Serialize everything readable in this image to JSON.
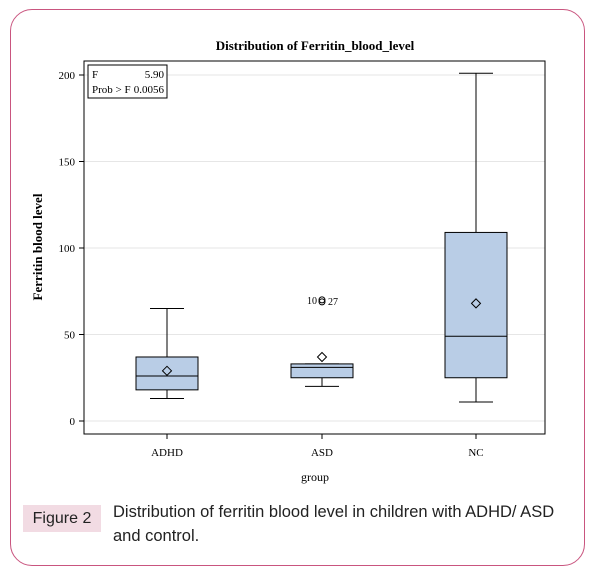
{
  "figure": {
    "label": "Figure 2",
    "caption": "Distribution of ferritin blood level in children with ADHD/ ASD and control."
  },
  "colors": {
    "frame_border": "#c9557f",
    "label_bg": "#f2dbe3",
    "box_fill": "#b9cde6",
    "stroke": "#000000",
    "grid": "#e6e6e6"
  },
  "chart_data": {
    "type": "box",
    "title": "Distribution of Ferritin_blood_level",
    "xlabel": "group",
    "ylabel": "Ferritin blood level",
    "ylim": [
      0,
      210
    ],
    "yticks": [
      0,
      50,
      100,
      150,
      200
    ],
    "grid": "horizontal",
    "categories": [
      "ADHD",
      "ASD",
      "NC"
    ],
    "boxes": [
      {
        "group": "ADHD",
        "min": 13,
        "q1": 18,
        "median": 26,
        "q3": 37,
        "max": 65,
        "mean": 29,
        "outliers": []
      },
      {
        "group": "ASD",
        "min": 20,
        "q1": 25,
        "median": 31,
        "q3": 33,
        "max": 33,
        "mean": 37,
        "outliers": [
          {
            "value": 70,
            "labels": [
              "10",
              "27"
            ]
          }
        ]
      },
      {
        "group": "NC",
        "min": 11,
        "q1": 25,
        "median": 49,
        "q3": 109,
        "max": 201,
        "mean": 68,
        "outliers": []
      }
    ],
    "stats": {
      "placement": "top-left",
      "rows": [
        {
          "label": "F",
          "value": "5.90"
        },
        {
          "label": "Prob > F",
          "value": "0.0056"
        }
      ]
    }
  }
}
